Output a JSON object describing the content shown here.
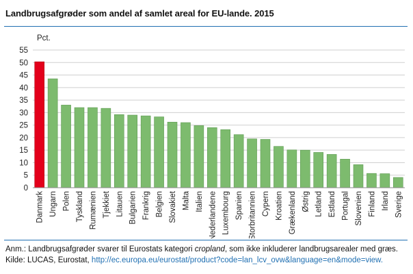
{
  "header": {
    "title": "Landbrugsafgrøder som andel af samlet areal for EU-lande. 2015"
  },
  "footer": {
    "note_prefix": "Anm.: Landbrugsafgrøder svarer til Eurostats kategori ",
    "note_term": "cropland",
    "note_suffix": ", som ikke inkluderer landbrugsarealer med græs.",
    "source_prefix": "Kilde: LUCAS, Eurostat, ",
    "source_link": "http://ec.europa.eu/eurostat/product?code=lan_lcv_ovw&language=en&mode=view."
  },
  "colors": {
    "highlight": "#e3001b",
    "bar": "#7dbb6e",
    "bar_edge": "#5e9a52",
    "rule": "#1f6fb2",
    "grid": "#cfcfcf"
  },
  "chart_data": {
    "type": "bar",
    "ylabel": "Pct.",
    "ylim": [
      0,
      55
    ],
    "yticks": [
      0,
      5,
      10,
      15,
      20,
      25,
      30,
      35,
      40,
      45,
      50,
      55
    ],
    "grid": true,
    "highlight_category": "Danmark",
    "categories": [
      "Danmark",
      "Ungarn",
      "Polen",
      "Tyskland",
      "Rumænien",
      "Tjekkiet",
      "Litauen",
      "Bulgarien",
      "Frankrig",
      "Belgien",
      "Slovakiet",
      "Malta",
      "Italien",
      "Nederlandene",
      "Luxembourg",
      "Spanien",
      "Storbritannien",
      "Cypern",
      "Kroatien",
      "Grækenland",
      "Østrig",
      "Letland",
      "Estland",
      "Portugal",
      "Slovenien",
      "Finland",
      "Irland",
      "Sverige"
    ],
    "values": [
      50.3,
      43.5,
      33.0,
      32.0,
      32.0,
      31.7,
      29.2,
      29.0,
      28.7,
      28.3,
      26.2,
      26.0,
      24.8,
      24.0,
      23.2,
      21.2,
      19.5,
      19.3,
      16.5,
      15.1,
      15.0,
      14.1,
      13.3,
      11.4,
      9.2,
      5.7,
      5.6,
      4.1
    ]
  }
}
